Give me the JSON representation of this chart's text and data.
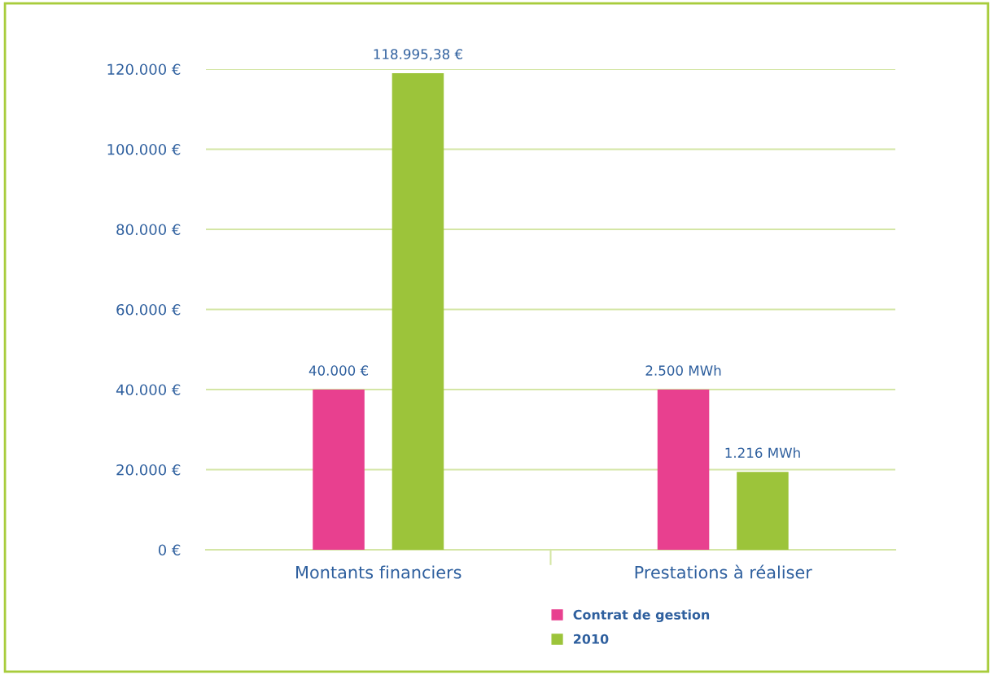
{
  "chart_data": [
    {
      "type": "bar",
      "categories": [
        "Montants financiers"
      ],
      "series": [
        {
          "color": "#e8408f",
          "values": [
            40000
          ],
          "value_labels": [
            "40.000 €"
          ]
        },
        {
          "color": "#9cc43a",
          "values": [
            118995.38
          ],
          "value_labels": [
            "118.995,38 €"
          ]
        }
      ],
      "ylim": [
        0,
        120000
      ],
      "yticks": [
        {
          "value": 0,
          "label": "0 €"
        },
        {
          "value": 20000,
          "label": "20.000 €"
        },
        {
          "value": 40000,
          "label": "40.000 €"
        },
        {
          "value": 60000,
          "label": "60.000 €"
        },
        {
          "value": 80000,
          "label": "80.000 €"
        },
        {
          "value": 100000,
          "label": "100.000 €"
        },
        {
          "value": 120000,
          "label": "120.000 €"
        }
      ],
      "grid": "y"
    },
    {
      "type": "bar",
      "categories": [
        "Prestations à réaliser"
      ],
      "series": [
        {
          "name": "Contrat de gestion",
          "color": "#e8408f",
          "values": [
            2500
          ],
          "value_labels": [
            "2.500 MWh"
          ]
        },
        {
          "name": "2010",
          "color": "#9cc43a",
          "values": [
            1216
          ],
          "value_labels": [
            "1.216 MWh"
          ]
        }
      ],
      "legend": "bottom"
    }
  ]
}
